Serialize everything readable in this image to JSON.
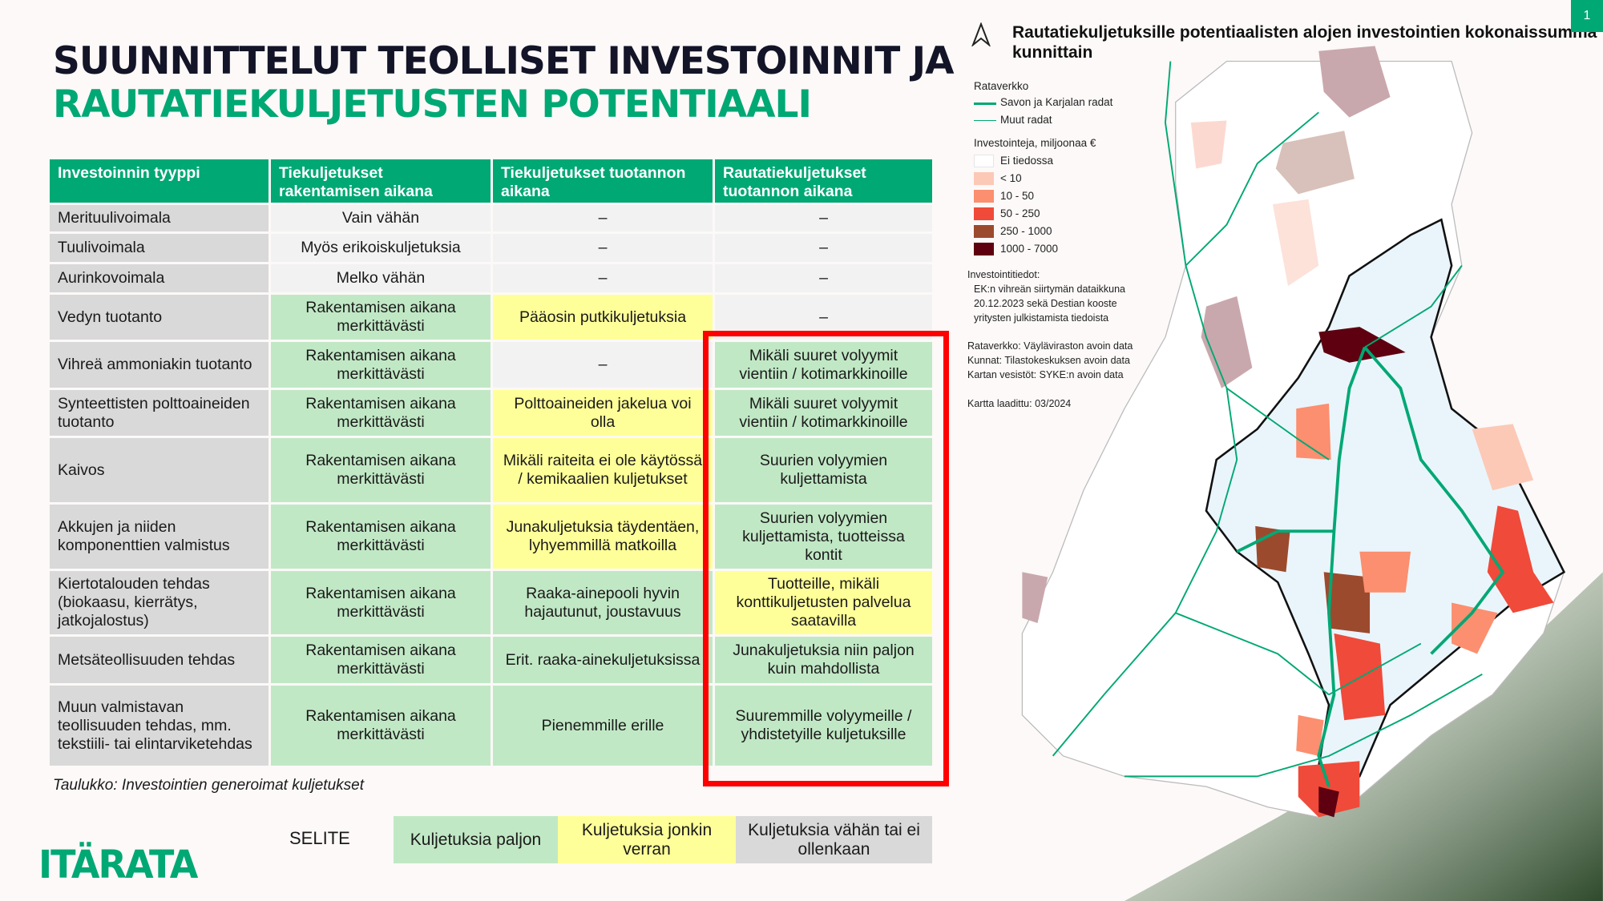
{
  "title": {
    "line1": "SUUNNITTELUT TEOLLISET INVESTOINNIT JA",
    "line2": "RAUTATIEKULJETUSTEN POTENTIAALI"
  },
  "page_number": "1",
  "table": {
    "headers": [
      "Investoinnin tyyppi",
      "Tiekuljetukset rakentamisen aikana",
      "Tiekuljetukset tuotannon aikana",
      "Rautatiekuljetukset tuotannon aikana"
    ],
    "rows": [
      {
        "type": "Merituulivoimala",
        "c1": "Vain vähän",
        "c2": "–",
        "c3": "–",
        "s": [
          "n",
          "n",
          "n"
        ]
      },
      {
        "type": "Tuulivoimala",
        "c1": "Myös erikoiskuljetuksia",
        "c2": "–",
        "c3": "–",
        "s": [
          "n",
          "n",
          "n"
        ]
      },
      {
        "type": "Aurinkovoimala",
        "c1": "Melko vähän",
        "c2": "–",
        "c3": "–",
        "s": [
          "n",
          "n",
          "n"
        ]
      },
      {
        "type": "Vedyn tuotanto",
        "c1": "Rakentamisen aikana merkittävästi",
        "c2": "Pääosin putkikuljetuksia",
        "c3": "–",
        "s": [
          "g",
          "y",
          "n"
        ]
      },
      {
        "type": "Vihreä ammoniakin tuotanto",
        "c1": "Rakentamisen aikana merkittävästi",
        "c2": "–",
        "c3": "Mikäli suuret volyymit vientiin / kotimarkkinoille",
        "s": [
          "g",
          "n",
          "g"
        ]
      },
      {
        "type": "Synteettisten polttoaineiden tuotanto",
        "c1": "Rakentamisen aikana merkittävästi",
        "c2": "Polttoaineiden jakelua voi olla",
        "c3": "Mikäli suuret volyymit vientiin / kotimarkkinoille",
        "s": [
          "g",
          "y",
          "g"
        ]
      },
      {
        "type": "Kaivos",
        "c1": "Rakentamisen aikana merkittävästi",
        "c2": "Mikäli raiteita ei ole käytössä / kemikaalien kuljetukset",
        "c3": "Suurien volyymien kuljettamista",
        "s": [
          "g",
          "y",
          "g"
        ]
      },
      {
        "type": "Akkujen ja niiden komponenttien valmistus",
        "c1": "Rakentamisen aikana merkittävästi",
        "c2": "Junakuljetuksia täydentäen, lyhyemmillä matkoilla",
        "c3": "Suurien volyymien kuljettamista, tuotteissa kontit",
        "s": [
          "g",
          "y",
          "g"
        ]
      },
      {
        "type": "Kiertotalouden tehdas (biokaasu, kierrätys, jatkojalostus)",
        "c1": "Rakentamisen aikana merkittävästi",
        "c2": "Raaka-ainepooli hyvin hajautunut, joustavuus",
        "c3": "Tuotteille, mikäli konttikuljetusten palvelua saatavilla",
        "s": [
          "g",
          "g",
          "y"
        ]
      },
      {
        "type": "Metsäteollisuuden tehdas",
        "c1": "Rakentamisen aikana merkittävästi",
        "c2": "Erit. raaka-ainekuljetuksissa",
        "c3": "Junakuljetuksia niin paljon kuin mahdollista",
        "s": [
          "g",
          "g",
          "g"
        ]
      },
      {
        "type": "Muun valmistavan teollisuuden tehdas, mm. tekstiili- tai elintarviketehdas",
        "c1": "Rakentamisen aikana merkittävästi",
        "c2": "Pienemmille erille",
        "c3": "Suuremmille volyymeille / yhdistetyille kuljetuksille",
        "s": [
          "g",
          "g",
          "g"
        ]
      }
    ],
    "caption_label": "Taulukko",
    "caption_text": ": Investointien generoimat kuljetukset"
  },
  "legend": {
    "title": "SELITE",
    "items": [
      {
        "label": "Kuljetuksia paljon",
        "color": "#c1e8c5"
      },
      {
        "label": "Kuljetuksia jonkin verran",
        "color": "#ffff99"
      },
      {
        "label": "Kuljetuksia vähän tai ei ollenkaan",
        "color": "#d9d9d9"
      }
    ]
  },
  "logo": "ITÄRATA",
  "map": {
    "title": "Rautatiekuljetuksille potentiaalisten alojen investointien kokonaissumma kunnittain",
    "north_icon": "north-arrow-icon",
    "rail_title": "Rataverkko",
    "rail_items": [
      "Savon ja Karjalan radat",
      "Muut radat"
    ],
    "invest_title": "Investointeja, miljoonaa €",
    "classes": [
      {
        "label": "Ei tiedossa",
        "color": "#ffffff"
      },
      {
        "label": "< 10",
        "color": "#fcc9b6"
      },
      {
        "label": "10 - 50",
        "color": "#fb8f6f"
      },
      {
        "label": "50 - 250",
        "color": "#f04a3a"
      },
      {
        "label": "250 - 1000",
        "color": "#9c4a2e"
      },
      {
        "label": "1000 - 7000",
        "color": "#5e0010"
      }
    ],
    "sources": [
      "Investointitiedot:",
      "EK:n vihreän siirtymän dataikkuna",
      "20.12.2023 sekä Destian kooste",
      "yritysten julkistamista tiedoista",
      "Rataverkko: Väyläviraston avoin data",
      "Kunnat: Tilastokeskuksen avoin data",
      "Kartan vesistöt: SYKE:n avoin data",
      "Kartta laadittu: 03/2024"
    ],
    "colors": {
      "rail": "#00a874"
    }
  }
}
